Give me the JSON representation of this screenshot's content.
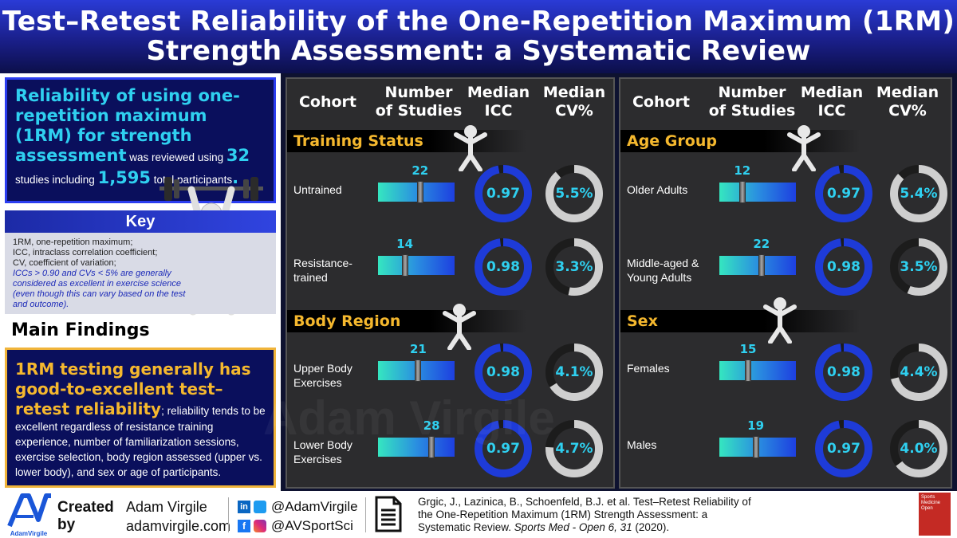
{
  "header": {
    "title_line1": "Test–Retest Reliability of the One-Repetition Maximum (1RM)",
    "title_line2": "Strength Assessment: a Systematic Review"
  },
  "summary": {
    "highlight": "Reliability of using one-repetition maximum (1RM) for strength assessment",
    "text1": " was reviewed using ",
    "studies": "32",
    "text2": " studies including ",
    "participants": "1,595",
    "text3": " total participants",
    "text4": "."
  },
  "key": {
    "title": "Key",
    "lines": [
      "1RM, one-repetition maximum;",
      "ICC, intraclass correlation coefficient;",
      "CV, coefficient of variation;"
    ],
    "note": "ICCs > 0.90 and CVs < 5% are generally considered as excellent in exercise science (even though this can vary based on the test and outcome)."
  },
  "main_findings": {
    "title": "Main Findings",
    "highlight": "1RM testing generally has good-to-excellent test–retest reliability",
    "body": "; reliability tends to be excellent regardless of resistance training experience, number of familiarization sessions, exercise selection, body region assessed (upper vs. lower body), and sex or age of participants."
  },
  "columns": {
    "cohort": "Cohort",
    "studies_l1": "Number",
    "studies_l2": "of Studies",
    "icc_l1": "Median",
    "icc_l2": "ICC",
    "cv_l1": "Median",
    "cv_l2": "CV%"
  },
  "left_panel": {
    "sections": [
      {
        "title": "Training Status",
        "rows": [
          {
            "label": "Untrained",
            "studies": "22",
            "studies_n": 22,
            "icc": "0.97",
            "icc_v": 0.97,
            "cv": "5.5%",
            "cv_v": 5.5
          },
          {
            "label": "Resistance-trained",
            "studies": "14",
            "studies_n": 14,
            "icc": "0.98",
            "icc_v": 0.98,
            "cv": "3.3%",
            "cv_v": 3.3
          }
        ]
      },
      {
        "title": "Body Region",
        "rows": [
          {
            "label": "Upper Body Exercises",
            "studies": "21",
            "studies_n": 21,
            "icc": "0.98",
            "icc_v": 0.98,
            "cv": "4.1%",
            "cv_v": 4.1
          },
          {
            "label": "Lower Body Exercises",
            "studies": "28",
            "studies_n": 28,
            "icc": "0.97",
            "icc_v": 0.97,
            "cv": "4.7%",
            "cv_v": 4.7
          }
        ]
      }
    ]
  },
  "right_panel": {
    "sections": [
      {
        "title": "Age Group",
        "rows": [
          {
            "label": "Older Adults",
            "studies": "12",
            "studies_n": 12,
            "icc": "0.97",
            "icc_v": 0.97,
            "cv": "5.4%",
            "cv_v": 5.4
          },
          {
            "label": "Middle-aged & Young Adults",
            "studies": "22",
            "studies_n": 22,
            "icc": "0.98",
            "icc_v": 0.98,
            "cv": "3.5%",
            "cv_v": 3.5
          }
        ]
      },
      {
        "title": "Sex",
        "rows": [
          {
            "label": "Females",
            "studies": "15",
            "studies_n": 15,
            "icc": "0.98",
            "icc_v": 0.98,
            "cv": "4.4%",
            "cv_v": 4.4
          },
          {
            "label": "Males",
            "studies": "19",
            "studies_n": 19,
            "icc": "0.97",
            "icc_v": 0.97,
            "cv": "4.0%",
            "cv_v": 4.0
          }
        ]
      }
    ]
  },
  "footer": {
    "logo_text": "AdamVirgile",
    "created": "Created",
    "by": "by",
    "name": "Adam Virgile",
    "site": "adamvirgile.com",
    "handle1": "@AdamVirgile",
    "handle2": "@AVSportSci",
    "citation_plain": "Grgic, J., Lazinica, B., Schoenfeld, B.J. et al. Test–Retest Reliability of the One-Repetition Maximum (1RM) Strength Assessment: a Systematic Review. ",
    "citation_journal": "Sports Med - Open 6, 31",
    "citation_year": " (2020).",
    "journal_cover_text": "Sports Medicine Open"
  },
  "watermark": "Adam Virgile",
  "colors": {
    "accent_cyan": "#2fd0f0",
    "accent_gold": "#f5b82e",
    "brand_blue": "#2b3df0"
  }
}
